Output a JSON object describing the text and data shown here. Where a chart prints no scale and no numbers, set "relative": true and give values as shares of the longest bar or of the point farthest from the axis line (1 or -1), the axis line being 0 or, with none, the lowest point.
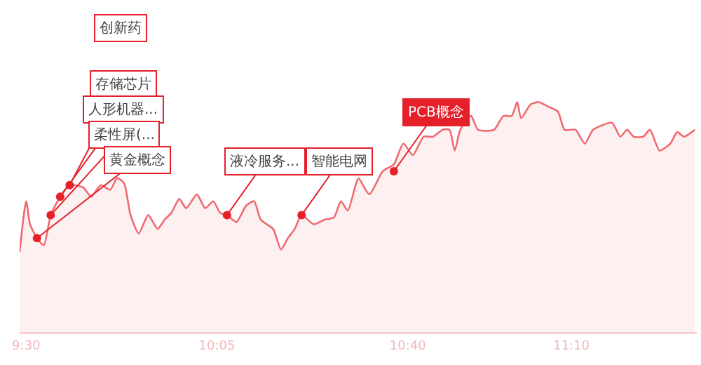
{
  "chart_data": {
    "type": "area",
    "relative": true,
    "x": [
      9.48,
      9.5,
      9.512,
      9.533,
      9.554,
      9.575,
      9.604,
      9.633,
      9.674,
      9.699,
      9.728,
      9.757,
      9.778,
      9.799,
      9.819,
      9.844,
      9.873,
      9.902,
      9.923,
      9.944,
      9.968,
      9.989,
      10.022,
      10.047,
      10.072,
      10.093,
      10.114,
      10.143,
      10.172,
      10.197,
      10.217,
      10.255,
      10.279,
      10.3,
      10.321,
      10.342,
      10.379,
      10.412,
      10.441,
      10.462,
      10.483,
      10.507,
      10.516,
      10.549,
      10.59,
      10.624,
      10.653,
      10.682,
      10.715,
      10.744,
      10.773,
      10.794,
      10.81,
      10.827,
      10.86,
      10.881,
      10.93,
      10.959,
      10.984,
      11.001,
      11.013,
      11.042,
      11.067,
      11.096,
      11.125,
      11.146,
      11.179,
      11.208,
      11.233,
      11.291,
      11.316,
      11.337,
      11.357,
      11.386,
      11.407,
      11.436,
      11.469,
      11.49,
      11.511,
      11.544
    ],
    "series": [
      {
        "color": "#ef6a70",
        "values": [
          0.35,
          0.57,
          0.47,
          0.41,
          0.38,
          0.51,
          0.59,
          0.64,
          0.63,
          0.59,
          0.64,
          0.62,
          0.67,
          0.65,
          0.51,
          0.43,
          0.51,
          0.45,
          0.49,
          0.52,
          0.58,
          0.54,
          0.6,
          0.54,
          0.57,
          0.52,
          0.51,
          0.48,
          0.55,
          0.57,
          0.49,
          0.45,
          0.36,
          0.41,
          0.45,
          0.51,
          0.47,
          0.49,
          0.5,
          0.57,
          0.53,
          0.64,
          0.67,
          0.6,
          0.7,
          0.73,
          0.82,
          0.77,
          0.85,
          0.85,
          0.88,
          0.88,
          0.79,
          0.88,
          0.94,
          0.88,
          0.88,
          0.94,
          0.94,
          1,
          0.93,
          0.99,
          1,
          0.98,
          0.96,
          0.88,
          0.88,
          0.82,
          0.88,
          0.91,
          0.85,
          0.88,
          0.85,
          0.85,
          0.88,
          0.79,
          0.82,
          0.87,
          0.85,
          0.88
        ]
      }
    ],
    "xlim": [
      9.48,
      11.55
    ],
    "xticks": [
      {
        "value": 9.5,
        "label": "9:30"
      },
      {
        "value": 10.0833,
        "label": "10:05"
      },
      {
        "value": 10.6667,
        "label": "10:40"
      },
      {
        "value": 11.1667,
        "label": "11:10"
      }
    ],
    "annotations": [
      {
        "text": "黄金概念",
        "x": 9.533,
        "y": 0.41
      },
      {
        "text": "柔性屏(...",
        "x": 9.575,
        "y": 0.51
      },
      {
        "text": "人形机器...",
        "x": 9.604,
        "y": 0.59
      },
      {
        "text": "存储芯片",
        "x": 9.633,
        "y": 0.64
      },
      "创新药",
      {
        "text": "液冷服务...",
        "x": 10.114,
        "y": 0.51
      },
      {
        "text": "智能电网",
        "x": 10.342,
        "y": 0.51
      },
      {
        "text": "PCB概念",
        "x": 10.624,
        "y": 0.7
      }
    ]
  }
}
